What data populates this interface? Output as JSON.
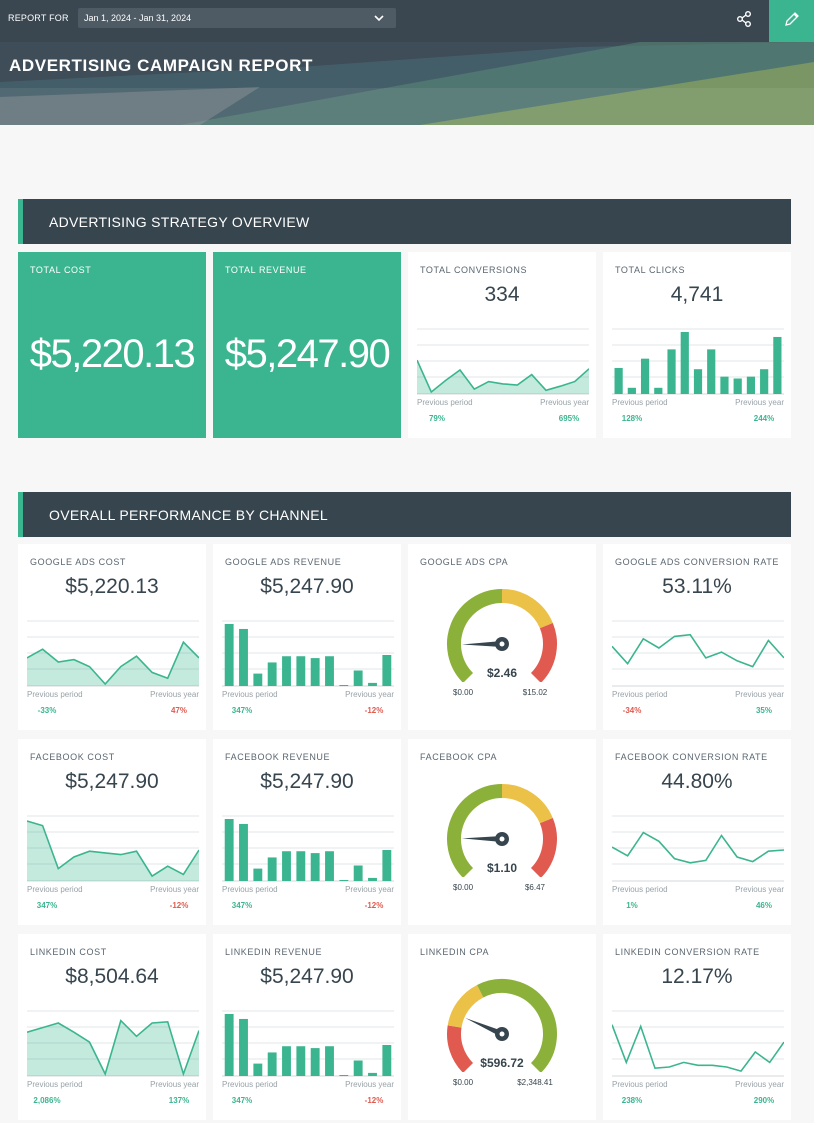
{
  "header": {
    "report_for_label": "REPORT FOR",
    "date_range": "Jan 1, 2024 - Jan 31, 2024",
    "title": "ADVERTISING CAMPAIGN REPORT"
  },
  "colors": {
    "accent": "#3bb58f",
    "dark": "#37454e",
    "negative": "#e05a4f",
    "gauge_green": "#8cb13a",
    "gauge_yellow": "#ebc147",
    "gauge_red": "#e05a4f"
  },
  "sections": {
    "overview": "ADVERTISING STRATEGY OVERVIEW",
    "channel": "OVERALL PERFORMANCE BY CHANNEL"
  },
  "overview": {
    "total_cost": {
      "label": "TOTAL COST",
      "value": "$5,220.13"
    },
    "total_revenue": {
      "label": "TOTAL REVENUE",
      "value": "$5,247.90"
    },
    "total_conversions": {
      "label": "TOTAL CONVERSIONS",
      "value": "334",
      "prev_label": "Previous period",
      "prev_value": "79%",
      "year_label": "Previous year",
      "year_value": "695%",
      "trend": [
        0.55,
        0.0,
        0.2,
        0.38,
        0.05,
        0.18,
        0.14,
        0.12,
        0.3,
        0.03,
        0.1,
        0.18,
        0.4
      ]
    },
    "total_clicks": {
      "label": "TOTAL CLICKS",
      "value": "4,741",
      "prev_label": "Previous period",
      "prev_value": "128%",
      "year_label": "Previous year",
      "year_value": "244%",
      "bars": [
        0.42,
        0.1,
        0.57,
        0.1,
        0.72,
        1.0,
        0.4,
        0.72,
        0.28,
        0.25,
        0.28,
        0.4,
        0.92
      ]
    }
  },
  "channels": {
    "google_cost": {
      "label": "GOOGLE ADS COST",
      "value": "$5,220.13",
      "prev_label": "Previous period",
      "prev_value": "-33%",
      "year_label": "Previous year",
      "year_value": "47%",
      "trend": [
        0.45,
        0.6,
        0.38,
        0.42,
        0.3,
        0.0,
        0.3,
        0.48,
        0.2,
        0.1,
        0.72,
        0.45
      ]
    },
    "google_revenue": {
      "label": "GOOGLE ADS REVENUE",
      "value": "$5,247.90",
      "prev_label": "Previous period",
      "prev_value": "347%",
      "year_label": "Previous year",
      "year_value": "-12%",
      "bars": [
        1.0,
        0.92,
        0.2,
        0.38,
        0.48,
        0.48,
        0.45,
        0.48,
        0.0,
        0.25,
        0.05,
        0.5
      ]
    },
    "google_cpa": {
      "label": "GOOGLE ADS CPA",
      "value": "$2.46",
      "min": "$0.00",
      "max": "$15.02",
      "fraction": 0.164
    },
    "google_rate": {
      "label": "GOOGLE ADS CONVERSION RATE",
      "value": "53.11%",
      "prev_label": "Previous period",
      "prev_value": "-34%",
      "year_label": "Previous year",
      "year_value": "35%",
      "trend": [
        0.65,
        0.35,
        0.78,
        0.62,
        0.82,
        0.85,
        0.45,
        0.55,
        0.4,
        0.3,
        0.75,
        0.45
      ]
    },
    "facebook_cost": {
      "label": "FACEBOOK COST",
      "value": "$5,247.90",
      "prev_label": "Previous period",
      "prev_value": "347%",
      "year_label": "Previous year",
      "year_value": "-12%",
      "trend": [
        1.0,
        0.92,
        0.18,
        0.38,
        0.48,
        0.45,
        0.42,
        0.48,
        0.05,
        0.22,
        0.08,
        0.5
      ]
    },
    "facebook_revenue": {
      "label": "FACEBOOK REVENUE",
      "value": "$5,247.90",
      "prev_label": "Previous period",
      "prev_value": "347%",
      "year_label": "Previous year",
      "year_value": "-12%",
      "bars": [
        1.0,
        0.92,
        0.2,
        0.38,
        0.48,
        0.48,
        0.45,
        0.48,
        0.0,
        0.25,
        0.05,
        0.5
      ]
    },
    "facebook_cpa": {
      "label": "FACEBOOK CPA",
      "value": "$1.10",
      "min": "$0.00",
      "max": "$6.47",
      "fraction": 0.17
    },
    "facebook_rate": {
      "label": "FACEBOOK CONVERSION RATE",
      "value": "44.80%",
      "prev_label": "Previous period",
      "prev_value": "1%",
      "year_label": "Previous year",
      "year_value": "46%",
      "trend": [
        0.55,
        0.4,
        0.8,
        0.65,
        0.35,
        0.28,
        0.32,
        0.75,
        0.38,
        0.3,
        0.48,
        0.5
      ]
    },
    "linkedin_cost": {
      "label": "LINKEDIN COST",
      "value": "$8,504.64",
      "prev_label": "Previous period",
      "prev_value": "2,086%",
      "year_label": "Previous year",
      "year_value": "137%",
      "trend": [
        0.72,
        0.8,
        0.88,
        0.72,
        0.55,
        0.0,
        0.92,
        0.65,
        0.88,
        0.9,
        0.0,
        0.75
      ]
    },
    "linkedin_revenue": {
      "label": "LINKEDIN REVENUE",
      "value": "$5,247.90",
      "prev_label": "Previous period",
      "prev_value": "347%",
      "year_label": "Previous year",
      "year_value": "-12%",
      "bars": [
        1.0,
        0.92,
        0.2,
        0.38,
        0.48,
        0.48,
        0.45,
        0.48,
        0.0,
        0.25,
        0.05,
        0.5
      ]
    },
    "linkedin_cpa": {
      "label": "LINKEDIN CPA",
      "value": "$596.72",
      "min": "$0.00",
      "max": "$2,348.41",
      "fraction": 0.254
    },
    "linkedin_rate": {
      "label": "LINKEDIN CONVERSION RATE",
      "value": "12.17%",
      "prev_label": "Previous period",
      "prev_value": "238%",
      "year_label": "Previous year",
      "year_value": "290%",
      "trend": [
        0.85,
        0.2,
        0.82,
        0.1,
        0.12,
        0.2,
        0.15,
        0.15,
        0.12,
        0.05,
        0.38,
        0.2,
        0.55
      ]
    }
  }
}
